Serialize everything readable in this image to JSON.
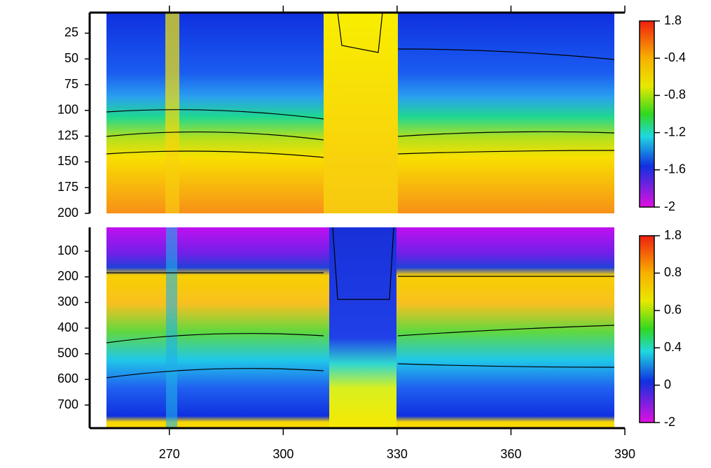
{
  "chart_data": [
    {
      "type": "heatmap",
      "ylim": [
        5,
        200
      ],
      "yticks": [
        25,
        50,
        75,
        100,
        125,
        150,
        175,
        200
      ],
      "colorbar_ticks": [
        1.8,
        -0.4,
        -0.8,
        -1.2,
        -1.6,
        -2.0
      ]
    },
    {
      "type": "heatmap",
      "ylim": [
        7,
        790
      ],
      "yticks": [
        100,
        200,
        300,
        400,
        500,
        600,
        700
      ],
      "colorbar_ticks": [
        1.8,
        0.8,
        0.6,
        0.4,
        0.0,
        -2.0
      ],
      "xlim": [
        249,
        390
      ],
      "xticks": [
        270,
        300,
        330,
        360,
        390
      ]
    }
  ]
}
